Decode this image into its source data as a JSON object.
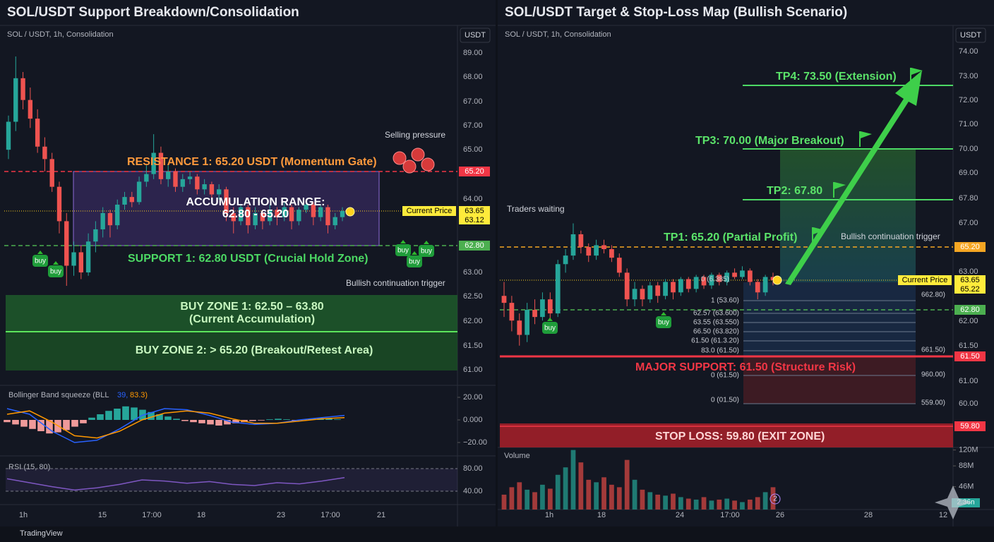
{
  "footer": "TradingView",
  "chart_data": [
    {
      "type": "candlestick",
      "title": "SOL/USDT Support Breakdown/Consolidation",
      "subtitle": "SOL / USDT, 1h, Consolidation",
      "currency": "USDT",
      "price_labels": [
        "89.00",
        "68.00",
        "67.00",
        "67.00",
        "65.00",
        "64.00",
        "63.00",
        "62.50",
        "62.00",
        "61.50",
        "61.00"
      ],
      "xticks": [
        "1h",
        "15",
        "17:00",
        "18",
        "23",
        "17:00",
        "21"
      ],
      "candles": [
        [
          65.9,
          67.0,
          65.6,
          66.8
        ],
        [
          66.8,
          68.9,
          66.5,
          68.2
        ],
        [
          68.2,
          68.4,
          67.2,
          67.5
        ],
        [
          67.5,
          67.9,
          66.6,
          66.9
        ],
        [
          66.9,
          67.2,
          65.8,
          66.0
        ],
        [
          66.0,
          66.3,
          65.2,
          65.6
        ],
        [
          65.6,
          65.8,
          64.4,
          64.6
        ],
        [
          64.6,
          64.8,
          63.1,
          63.4
        ],
        [
          63.4,
          63.6,
          61.6,
          62.2
        ],
        [
          62.2,
          62.9,
          61.9,
          62.6
        ],
        [
          62.6,
          62.8,
          61.8,
          62.0
        ],
        [
          62.0,
          63.1,
          61.9,
          62.9
        ],
        [
          62.9,
          63.4,
          62.6,
          63.2
        ],
        [
          63.2,
          63.8,
          63.0,
          63.6
        ],
        [
          63.6,
          63.7,
          63.0,
          63.3
        ],
        [
          63.3,
          64.1,
          63.2,
          63.9
        ],
        [
          63.9,
          64.4,
          63.7,
          64.2
        ],
        [
          64.2,
          64.4,
          63.8,
          64.0
        ],
        [
          64.0,
          65.0,
          63.9,
          64.8
        ],
        [
          64.8,
          65.4,
          64.6,
          65.1
        ],
        [
          65.1,
          66.4,
          64.9,
          65.8
        ],
        [
          65.8,
          66.0,
          64.7,
          64.9
        ],
        [
          64.9,
          65.4,
          64.6,
          65.2
        ],
        [
          65.2,
          65.3,
          64.4,
          64.6
        ],
        [
          64.6,
          65.1,
          64.4,
          64.9
        ],
        [
          64.9,
          65.2,
          64.7,
          65.0
        ],
        [
          65.0,
          65.1,
          64.3,
          64.5
        ],
        [
          64.5,
          64.9,
          64.3,
          64.7
        ],
        [
          64.7,
          64.8,
          64.1,
          64.3
        ],
        [
          64.3,
          64.7,
          64.1,
          64.5
        ],
        [
          64.5,
          64.6,
          63.4,
          63.6
        ],
        [
          63.6,
          63.8,
          63.1,
          63.4
        ],
        [
          63.4,
          63.9,
          63.3,
          63.8
        ],
        [
          63.8,
          63.9,
          63.1,
          63.3
        ],
        [
          63.3,
          63.8,
          63.2,
          63.6
        ],
        [
          63.6,
          63.7,
          63.2,
          63.4
        ],
        [
          63.4,
          63.9,
          63.3,
          63.7
        ],
        [
          63.7,
          63.8,
          63.3,
          63.5
        ],
        [
          63.5,
          64.0,
          63.4,
          63.8
        ],
        [
          63.8,
          63.9,
          63.2,
          63.4
        ],
        [
          63.4,
          63.8,
          63.3,
          63.7
        ],
        [
          63.7,
          64.1,
          63.6,
          63.9
        ],
        [
          63.9,
          64.0,
          63.3,
          63.5
        ],
        [
          63.5,
          63.9,
          63.4,
          63.8
        ],
        [
          63.8,
          63.9,
          63.1,
          63.3
        ],
        [
          63.3,
          63.6,
          63.2,
          63.5
        ],
        [
          63.5,
          63.8,
          63.4,
          63.65
        ]
      ],
      "up_color": "#26a69a",
      "down_color": "#ef5350",
      "levels": [
        {
          "value": 65.2,
          "label": "65.20",
          "color": "#f23645",
          "style": "dashed"
        },
        {
          "value": 62.8,
          "label": "62.80",
          "color": "#4caf50",
          "style": "dashed"
        }
      ],
      "current_price": {
        "label": "Current Price",
        "values": [
          63.65,
          63.12
        ],
        "value_labels": [
          "63.65",
          "63.12"
        ]
      },
      "annotations": {
        "selling": "Selling pressure",
        "resistance": "RESISTANCE 1: 65.20 USDT (Momentum Gate)",
        "accumulation_1": "ACCUMULATION RANGE:",
        "accumulation_2": "62.80 - 65.20",
        "support": "SUPPORT 1: 62.80 USDT (Crucial Hold Zone)",
        "trigger": "Bullish continuation trigger",
        "zone_1a": "BUY ZONE 1: 62.50 – 63.80",
        "zone_1b": "(Current Accumulation)",
        "zone_2": "BUY ZONE 2: > 65.20 (Breakout/Retest Area)"
      },
      "badges": [
        "buy",
        "buy",
        "buy",
        "buy",
        "buy"
      ],
      "bollinger": {
        "label": "Bollinger Band squeeze (BLL",
        "param_1": "39,",
        "param_2": "83.3)",
        "yticks": [
          {
            "value": 20,
            "label": "20.00"
          },
          {
            "value": 0,
            "label": "0.000"
          },
          {
            "value": -20,
            "label": "−20.00"
          }
        ],
        "histogram": [
          -2,
          -4,
          -6,
          -8,
          -10,
          -12,
          -11,
          -9,
          -6,
          -3,
          2,
          5,
          8,
          10,
          12,
          11,
          9,
          7,
          5,
          3,
          1,
          -1,
          -2,
          -3,
          -4,
          -5,
          -4,
          -3,
          -2,
          -1,
          -0.5,
          0.5,
          1,
          0.5,
          -0.5,
          0.5,
          1,
          1.5,
          1,
          0.5
        ],
        "lines": [
          {
            "color": "#2962ff",
            "values": [
              10,
              5,
              -10,
              -20,
              -18,
              -8,
              4,
              10,
              9,
              4,
              -2,
              -4,
              -3,
              0,
              2,
              4
            ]
          },
          {
            "color": "#ff9800",
            "values": [
              5,
              8,
              -2,
              -14,
              -16,
              -10,
              0,
              6,
              8,
              6,
              1,
              -3,
              -3,
              -1,
              1,
              2
            ]
          }
        ]
      },
      "rsi": {
        "label": "RSI (15, 80)",
        "yticks": [
          {
            "value": 80,
            "label": "80.00"
          },
          {
            "value": 40,
            "label": "40.00"
          }
        ],
        "color": "#7e57c2",
        "values": [
          62,
          55,
          48,
          42,
          46,
          52,
          60,
          58,
          54,
          57,
          52,
          50,
          55,
          53,
          58,
          64
        ]
      }
    },
    {
      "type": "candlestick",
      "title": "SOL/USDT Target & Stop-Loss Map (Bullish Scenario)",
      "subtitle": "SOL / USDT, 1h, Consolidation",
      "currency": "USDT",
      "price_labels": [
        "74.00",
        "73.00",
        "72.00",
        "71.00",
        "70.00",
        "69.00",
        "67.80",
        "67.00",
        "63.00",
        "62.00",
        "61.50",
        "61.00",
        "60.00"
      ],
      "xticks": [
        "1h",
        "18",
        "24",
        "17:00",
        "26",
        "28",
        "12"
      ],
      "candles": [
        [
          63.2,
          63.6,
          62.6,
          63.0
        ],
        [
          63.0,
          63.2,
          62.2,
          62.5
        ],
        [
          62.5,
          62.7,
          61.8,
          62.1
        ],
        [
          62.1,
          63.0,
          61.9,
          62.8
        ],
        [
          62.8,
          63.1,
          62.4,
          62.6
        ],
        [
          62.6,
          63.3,
          62.5,
          63.1
        ],
        [
          63.1,
          63.3,
          62.5,
          62.7
        ],
        [
          62.7,
          64.6,
          62.6,
          64.4
        ],
        [
          64.4,
          65.1,
          64.0,
          64.8
        ],
        [
          64.8,
          66.5,
          64.6,
          65.9
        ],
        [
          65.9,
          66.1,
          64.9,
          65.2
        ],
        [
          65.2,
          65.4,
          64.5,
          64.8
        ],
        [
          64.8,
          65.6,
          64.6,
          65.3
        ],
        [
          65.3,
          65.6,
          64.9,
          65.1
        ],
        [
          65.1,
          65.3,
          64.5,
          64.7
        ],
        [
          64.7,
          64.9,
          63.8,
          64.0
        ],
        [
          64.0,
          64.2,
          62.9,
          63.1
        ],
        [
          63.1,
          63.6,
          62.9,
          63.4
        ],
        [
          63.4,
          63.5,
          62.9,
          63.1
        ],
        [
          63.1,
          63.6,
          63.0,
          63.5
        ],
        [
          63.5,
          63.6,
          63.0,
          63.2
        ],
        [
          63.2,
          63.7,
          63.1,
          63.6
        ],
        [
          63.6,
          63.7,
          63.1,
          63.3
        ],
        [
          63.3,
          63.8,
          63.2,
          63.7
        ],
        [
          63.7,
          63.8,
          63.3,
          63.4
        ],
        [
          63.4,
          63.9,
          63.3,
          63.8
        ],
        [
          63.8,
          63.9,
          63.4,
          63.5
        ],
        [
          63.5,
          64.0,
          63.4,
          63.9
        ],
        [
          63.9,
          64.0,
          63.5,
          63.6
        ],
        [
          63.6,
          64.1,
          63.5,
          64.0
        ],
        [
          64.0,
          64.2,
          63.7,
          63.8
        ],
        [
          63.8,
          64.3,
          63.7,
          64.1
        ],
        [
          64.1,
          64.2,
          63.5,
          63.6
        ],
        [
          63.6,
          63.7,
          63.1,
          63.3
        ],
        [
          63.3,
          63.9,
          63.2,
          63.8
        ],
        [
          63.8,
          64.0,
          63.5,
          63.65
        ]
      ],
      "up_color": "#26a69a",
      "down_color": "#ef5350",
      "levels": [
        {
          "value": 65.2,
          "label": "65.20",
          "color": "#f5a623",
          "style": "dashed"
        },
        {
          "value": 62.8,
          "label": "62.80",
          "color": "#4caf50",
          "style": "dashed"
        },
        {
          "value": 61.5,
          "label": "61.50",
          "color": "#f23645",
          "style": "solid"
        },
        {
          "value": 59.8,
          "label": "59.80",
          "color": "#f23645",
          "style": "band"
        }
      ],
      "targets": [
        73.5,
        70,
        67.8
      ],
      "current_price": {
        "label": "Current Price",
        "values": [
          63.65,
          65.22
        ],
        "value_labels": [
          "63.65",
          "65.22"
        ]
      },
      "annotations": {
        "traders": "Traders waiting",
        "tp4": "TP4: 73.50 (Extension)",
        "tp3": "TP3: 70.00 (Major Breakout)",
        "tp2": "TP2: 67.80",
        "tp1": "TP1: 65.20 (Partial Profit)",
        "trigger": "Bullish continuation trigger",
        "major": "MAJOR SUPPORT: 61.50 (Structure Risk)",
        "stop": "STOP LOSS: 59.80 (EXIT ZONE)"
      },
      "fib_labels": [
        "0 (6.385)",
        "1 (53.60)",
        "662.80)",
        "62.57 (63.600)",
        "63.55 (63.550)",
        "66.50 (63.820)",
        "61.50 (61.3.20)",
        "83.0 (61.50)",
        "661.50)",
        "0 (61.50)",
        "960.00)",
        "0 (01.50)",
        "559.00)"
      ],
      "badges": [
        "buy",
        "buy"
      ],
      "volume": {
        "label": "Volume",
        "yticks": [
          {
            "value": 120,
            "label": "120M"
          },
          {
            "value": 88,
            "label": "88M"
          },
          {
            "value": 46,
            "label": "46M"
          }
        ],
        "tag": "2.36n",
        "badge": "2",
        "values": [
          30,
          45,
          55,
          40,
          35,
          50,
          42,
          70,
          85,
          120,
          95,
          60,
          55,
          65,
          50,
          45,
          100,
          60,
          40,
          35,
          30,
          28,
          32,
          25,
          22,
          20,
          25,
          18,
          20,
          22,
          18,
          15,
          20,
          25,
          35,
          45
        ]
      }
    }
  ]
}
